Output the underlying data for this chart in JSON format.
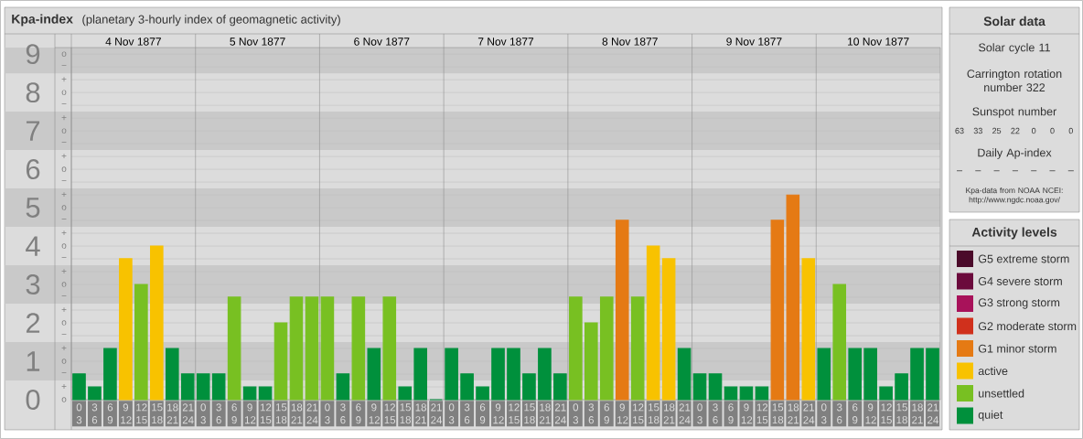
{
  "chart_data": [
    {
      "type": "bar",
      "title": "Kpa-index",
      "subtitle": "(planetary 3-hourly index of geomagnetic activity)",
      "categories": [
        "0 3",
        "3 6",
        "6 9",
        "9 12",
        "12 15",
        "15 18",
        "18 21",
        "21 24",
        "0 3",
        "3 6",
        "6 9",
        "9 12",
        "12 15",
        "15 18",
        "18 21",
        "21 24",
        "0 3",
        "3 6",
        "6 9",
        "9 12",
        "12 15",
        "15 18",
        "18 21",
        "21 24",
        "0 3",
        "3 6",
        "6 9",
        "9 12",
        "12 15",
        "15 18",
        "18 21",
        "21 24",
        "0 3",
        "3 6",
        "6 9",
        "9 12",
        "12 15",
        "15 18",
        "18 21",
        "21 24",
        "0 3",
        "3 6",
        "6 9",
        "9 12",
        "12 15",
        "15 18",
        "18 21",
        "21 24",
        "0 3",
        "3 6",
        "6 9",
        "9 12",
        "12 15",
        "15 18",
        "18 21",
        "21 24"
      ],
      "series": [
        {
          "name": "G5 extreme storm",
          "color": "#4b0a2a",
          "values": [
            null,
            null,
            null,
            null,
            null,
            null,
            null,
            null,
            null,
            null,
            null,
            null,
            null,
            null,
            null,
            null,
            null,
            null,
            null,
            null,
            null,
            null,
            null,
            null,
            null,
            null,
            null,
            null,
            null,
            null,
            null,
            null,
            null,
            null,
            null,
            null,
            null,
            null,
            null,
            null,
            null,
            null,
            null,
            null,
            null,
            null,
            null,
            null,
            null,
            null,
            null,
            null,
            null,
            null,
            null,
            null
          ]
        },
        {
          "name": "G4 severe storm",
          "color": "#6b0a3c",
          "values": [
            null,
            null,
            null,
            null,
            null,
            null,
            null,
            null,
            null,
            null,
            null,
            null,
            null,
            null,
            null,
            null,
            null,
            null,
            null,
            null,
            null,
            null,
            null,
            null,
            null,
            null,
            null,
            null,
            null,
            null,
            null,
            null,
            null,
            null,
            null,
            null,
            null,
            null,
            null,
            null,
            null,
            null,
            null,
            null,
            null,
            null,
            null,
            null,
            null,
            null,
            null,
            null,
            null,
            null,
            null,
            null
          ]
        },
        {
          "name": "G3 strong storm",
          "color": "#a8125a",
          "values": [
            null,
            null,
            null,
            null,
            null,
            null,
            null,
            null,
            null,
            null,
            null,
            null,
            null,
            null,
            null,
            null,
            null,
            null,
            null,
            null,
            null,
            null,
            null,
            null,
            null,
            null,
            null,
            null,
            null,
            null,
            null,
            null,
            null,
            null,
            null,
            null,
            null,
            null,
            null,
            null,
            null,
            null,
            null,
            null,
            null,
            null,
            null,
            null,
            null,
            null,
            null,
            null,
            null,
            null,
            null,
            null
          ]
        },
        {
          "name": "G2 moderate storm",
          "color": "#d0301c",
          "values": [
            null,
            null,
            null,
            null,
            null,
            null,
            null,
            null,
            null,
            null,
            null,
            null,
            null,
            null,
            null,
            null,
            null,
            null,
            null,
            null,
            null,
            null,
            null,
            null,
            null,
            null,
            null,
            null,
            null,
            null,
            null,
            null,
            null,
            null,
            null,
            null,
            null,
            null,
            null,
            null,
            null,
            null,
            null,
            null,
            null,
            null,
            null,
            null,
            null,
            null,
            null,
            null,
            null,
            null,
            null,
            null
          ]
        },
        {
          "name": "G1 minor storm",
          "color": "#e57a14",
          "values": [
            null,
            null,
            null,
            null,
            null,
            null,
            null,
            null,
            null,
            null,
            null,
            null,
            null,
            null,
            null,
            null,
            null,
            null,
            null,
            null,
            null,
            null,
            null,
            null,
            null,
            null,
            null,
            null,
            null,
            null,
            null,
            null,
            null,
            null,
            null,
            4.67,
            null,
            null,
            null,
            null,
            null,
            null,
            null,
            null,
            null,
            4.67,
            5.33,
            null,
            null,
            null,
            null,
            null,
            null,
            null,
            null,
            null
          ]
        },
        {
          "name": "active",
          "color": "#f8c200",
          "values": [
            null,
            null,
            null,
            3.67,
            null,
            4,
            null,
            null,
            null,
            null,
            null,
            null,
            null,
            null,
            null,
            null,
            null,
            null,
            null,
            null,
            null,
            null,
            null,
            null,
            null,
            null,
            null,
            null,
            null,
            null,
            null,
            null,
            null,
            null,
            null,
            null,
            null,
            4,
            3.67,
            null,
            null,
            null,
            null,
            null,
            null,
            null,
            null,
            3.67,
            null,
            null,
            null,
            null,
            null,
            null,
            null,
            null
          ]
        },
        {
          "name": "unsettled",
          "color": "#78c022",
          "values": [
            null,
            null,
            null,
            null,
            3,
            null,
            null,
            null,
            null,
            null,
            2.67,
            null,
            null,
            2,
            2.67,
            2.67,
            2.67,
            null,
            2.67,
            null,
            2.67,
            null,
            null,
            null,
            null,
            null,
            null,
            null,
            null,
            null,
            null,
            null,
            2.67,
            2,
            2.67,
            null,
            2.67,
            null,
            null,
            null,
            null,
            null,
            null,
            null,
            null,
            null,
            null,
            null,
            null,
            3,
            null,
            null,
            null,
            null,
            null,
            null
          ]
        },
        {
          "name": "quiet",
          "color": "#00903c",
          "values": [
            0.67,
            0.33,
            1.33,
            null,
            null,
            null,
            1.33,
            0.67,
            0.67,
            0.67,
            null,
            0.33,
            0.33,
            null,
            null,
            null,
            null,
            0.67,
            null,
            1.33,
            null,
            0.33,
            1.33,
            0,
            1.33,
            0.67,
            0.33,
            1.33,
            1.33,
            0.67,
            1.33,
            0.67,
            null,
            null,
            null,
            null,
            null,
            null,
            null,
            1.33,
            0.67,
            0.67,
            0.33,
            0.33,
            0.33,
            null,
            null,
            null,
            1.33,
            null,
            1.33,
            1.33,
            0.33,
            0.67,
            1.33,
            1.33
          ]
        }
      ],
      "ylim": [
        0,
        9.17
      ],
      "yticks": [
        0,
        1,
        2,
        3,
        4,
        5,
        6,
        7,
        8,
        9
      ],
      "grid": "y",
      "bands": [
        {
          "axis": "y",
          "from": 0.5,
          "to": 1.5,
          "color": "#c9c9c9"
        },
        {
          "axis": "y",
          "from": 2.5,
          "to": 3.5,
          "color": "#c9c9c9"
        },
        {
          "axis": "y",
          "from": 4.5,
          "to": 5.5,
          "color": "#c9c9c9"
        },
        {
          "axis": "y",
          "from": 6.5,
          "to": 7.5,
          "color": "#c9c9c9"
        },
        {
          "axis": "y",
          "from": 8.5,
          "to": 9.17,
          "color": "#c9c9c9"
        }
      ],
      "annotations": [
        "4 Nov 1877",
        "5 Nov 1877",
        "6 Nov 1877",
        "7 Nov 1877",
        "8 Nov 1877",
        "9 Nov 1877",
        "10 Nov 1877",
        "o",
        "−",
        "+",
        "o",
        "−",
        "+",
        "o",
        "−",
        "+",
        "o",
        "−",
        "+",
        "o",
        "−",
        "+",
        "o",
        "−",
        "+",
        "o",
        "−",
        "+",
        "o",
        "−",
        "+",
        "o",
        "−",
        "+",
        "o"
      ],
      "legend": "right",
      "legend_title": "Activity levels"
    },
    {
      "type": "other",
      "title": "Solar data",
      "annotations": [
        "Solar cycle 11",
        "Carrington rotation number 322",
        "Sunspot number",
        "63",
        "33",
        "25",
        "22",
        "0",
        "0",
        "0",
        "Daily Ap-index",
        "–",
        "–",
        "–",
        "–",
        "–",
        "–",
        "–",
        "Kpa-data from NOAA NCEI: http://www.ngdc.noaa.gov/"
      ]
    }
  ]
}
